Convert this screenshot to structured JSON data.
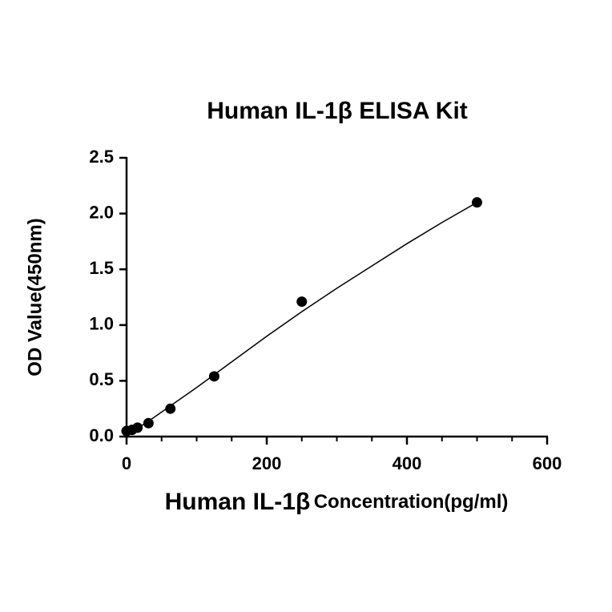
{
  "chart_data": {
    "type": "scatter",
    "title": "Human IL-1β ELISA Kit",
    "xlabel": {
      "main": "Human IL-1β",
      "rest": "Concentration(pg/ml)"
    },
    "ylabel": "OD Value(450nm)",
    "x": [
      0,
      7.8,
      15.6,
      31.25,
      62.5,
      125,
      250,
      500
    ],
    "values": [
      0.05,
      0.06,
      0.08,
      0.12,
      0.25,
      0.54,
      1.21,
      2.1
    ],
    "color": "#000000",
    "fit": {
      "x": [
        0,
        25,
        50,
        100,
        150,
        200,
        250,
        300,
        350,
        400,
        450,
        500
      ],
      "values": [
        0.04,
        0.11,
        0.22,
        0.44,
        0.67,
        0.9,
        1.12,
        1.33,
        1.53,
        1.73,
        1.92,
        2.1
      ]
    },
    "xlim": [
      0,
      600
    ],
    "xticks": [
      0,
      200,
      400,
      600
    ],
    "xminorticks": [
      50,
      100,
      150,
      250,
      300,
      350,
      450,
      500,
      550
    ],
    "ylim": [
      0,
      2.5
    ],
    "yticks": [
      {
        "value": 0,
        "label": "0.0"
      },
      0.5,
      {
        "value": 1,
        "label": "1.0"
      },
      1.5,
      {
        "value": 2,
        "label": "2.0"
      },
      2.5
    ]
  }
}
